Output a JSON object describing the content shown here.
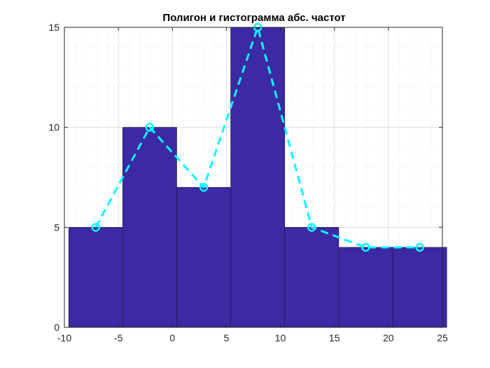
{
  "chart_data": {
    "type": "bar",
    "title": "Полигон и гистограмма абс. частот",
    "xlabel": "",
    "ylabel": "",
    "xlim": [
      -10,
      25
    ],
    "ylim": [
      0,
      15
    ],
    "xticks": [
      -10,
      -5,
      0,
      5,
      10,
      15,
      20,
      25
    ],
    "yticks": [
      0,
      5,
      10,
      15
    ],
    "grid": "on (major and minor)",
    "histogram": {
      "bin_edges": [
        -9.6,
        -4.6,
        0.4,
        5.4,
        10.4,
        15.4,
        20.4,
        25.4
      ],
      "values": [
        5,
        10,
        7,
        15,
        5,
        4,
        4
      ],
      "color": "#3c29a4"
    },
    "polygon": {
      "x": [
        -7.1,
        -2.1,
        2.9,
        7.9,
        12.9,
        17.9,
        22.9
      ],
      "y": [
        5,
        10,
        7,
        15,
        5,
        4,
        4
      ],
      "color": "#00ffff",
      "line_style": "dashed",
      "marker": "circle"
    }
  }
}
